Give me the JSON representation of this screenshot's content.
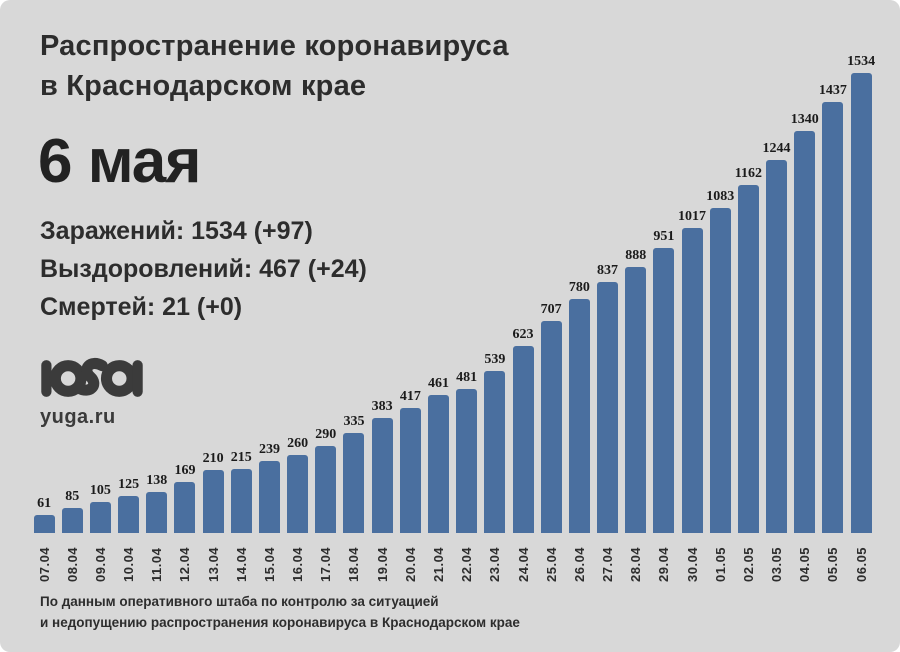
{
  "page": {
    "background_color": "#d8d8d8",
    "text_color": "#2d2d2d"
  },
  "header": {
    "title_line1": "Распространение коронавируса",
    "title_line2": "в Краснодарском крае",
    "date": "6 мая",
    "stats": {
      "infections": "Заражений: 1534 (+97)",
      "recoveries": "Выздоровлений: 467 (+24)",
      "deaths": "Смертей: 21 (+0)"
    }
  },
  "logo": {
    "site": "yuga.ru"
  },
  "chart_data": {
    "type": "bar",
    "categories": [
      "07.04",
      "08.04",
      "09.04",
      "10.04",
      "11.04",
      "12.04",
      "13.04",
      "14.04",
      "15.04",
      "16.04",
      "17.04",
      "18.04",
      "19.04",
      "20.04",
      "21.04",
      "22.04",
      "23.04",
      "24.04",
      "25.04",
      "26.04",
      "27.04",
      "28.04",
      "29.04",
      "30.04",
      "01.05",
      "02.05",
      "03.05",
      "04.05",
      "05.05",
      "06.05"
    ],
    "values": [
      61,
      85,
      105,
      125,
      138,
      169,
      210,
      215,
      239,
      260,
      290,
      335,
      383,
      417,
      461,
      481,
      539,
      623,
      707,
      780,
      837,
      888,
      951,
      1017,
      1083,
      1162,
      1244,
      1340,
      1437,
      1534
    ],
    "title": "Распространение коронавируса в Краснодарском крае",
    "xlabel": "",
    "ylabel": "",
    "ylim": [
      0,
      1534
    ],
    "bar_color": "#4a6f9f",
    "value_labels_shown": true,
    "grid": false,
    "legend": "none"
  },
  "footer": {
    "line1": "По данным оперативного штаба по контролю за ситуацией",
    "line2": "и недопущению распространения коронавируса в Краснодарском крае"
  }
}
